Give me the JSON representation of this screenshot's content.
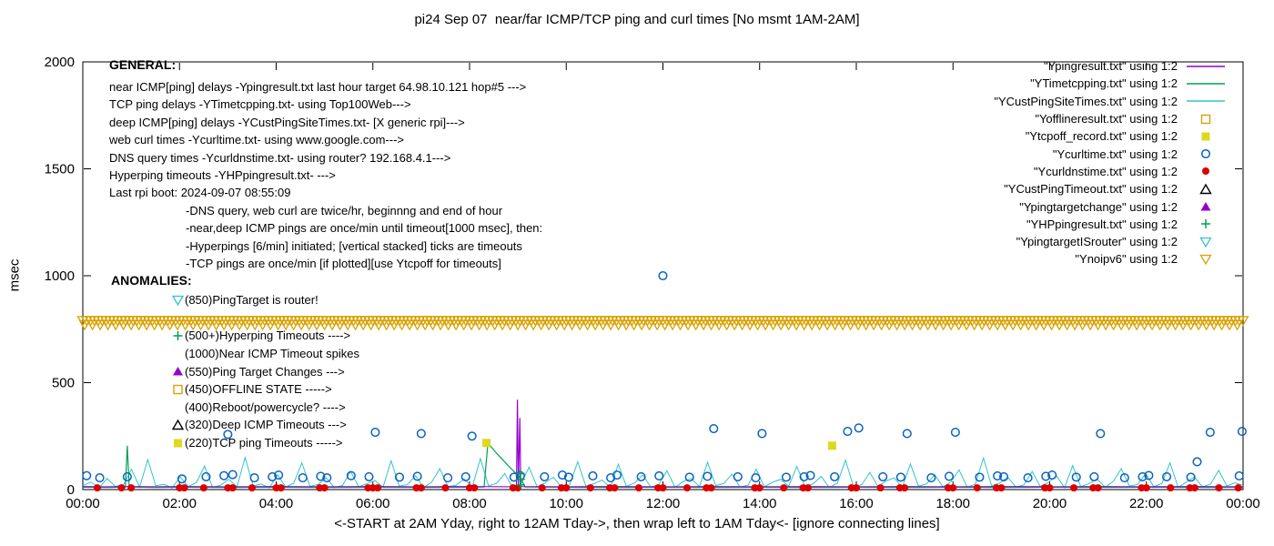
{
  "chart_data": {
    "type": "line",
    "title": "pi24 Sep 07  near/far ICMP/TCP ping and curl times [No msmt 1AM-2AM]",
    "xlabel": "<-START at 2AM Yday, right to 12AM Tday->, then wrap left to 1AM Tday<- [ignore connecting lines]",
    "ylabel": "msec",
    "xlim": [
      0,
      24
    ],
    "ylim": [
      0,
      2000
    ],
    "grid": false,
    "legend_position": "top-right",
    "xticks": [
      {
        "h": 0,
        "label": "00:00"
      },
      {
        "h": 2,
        "label": "02:00"
      },
      {
        "h": 4,
        "label": "04:00"
      },
      {
        "h": 6,
        "label": "06:00"
      },
      {
        "h": 8,
        "label": "08:00"
      },
      {
        "h": 10,
        "label": "10:00"
      },
      {
        "h": 12,
        "label": "12:00"
      },
      {
        "h": 14,
        "label": "14:00"
      },
      {
        "h": 16,
        "label": "16:00"
      },
      {
        "h": 18,
        "label": "18:00"
      },
      {
        "h": 20,
        "label": "20:00"
      },
      {
        "h": 22,
        "label": "22:00"
      },
      {
        "h": 24,
        "label": "00:00"
      }
    ],
    "yticks": [
      {
        "ms": 0,
        "label": "0"
      },
      {
        "ms": 500,
        "label": "500"
      },
      {
        "ms": 1000,
        "label": "1000"
      },
      {
        "ms": 1500,
        "label": "1500"
      },
      {
        "ms": 2000,
        "label": "2000"
      }
    ],
    "legend": [
      {
        "label": "\"Ypingresult.txt\" using 1:2",
        "marker": "line",
        "color": "#9400d3"
      },
      {
        "label": "\"YTimetcpping.txt\" using 1:2",
        "marker": "line",
        "color": "#00a050"
      },
      {
        "label": "\"YCustPingSiteTimes.txt\" using 1:2",
        "marker": "line",
        "color": "#2fc6c6"
      },
      {
        "label": "\"Yofflineresult.txt\" using 1:2",
        "marker": "square-open",
        "color": "#d9a200"
      },
      {
        "label": "\"Ytcpoff_record.txt\" using 1:2",
        "marker": "square-filled",
        "color": "#ddd820"
      },
      {
        "label": "\"Ycurltime.txt\" using 1:2",
        "marker": "circle-open",
        "color": "#0b62c1"
      },
      {
        "label": "\"Ycurldnstime.txt\" using 1:2",
        "marker": "circle-filled",
        "color": "#dd0000"
      },
      {
        "label": "\"YCustPingTimeout.txt\" using 1:2",
        "marker": "tri-up-open",
        "color": "#000000"
      },
      {
        "label": "\"Ypingtargetchange\" using 1:2",
        "marker": "tri-up-filled",
        "color": "#9400d3"
      },
      {
        "label": "\"YHPpingresult.txt\" using 1:2",
        "marker": "plus",
        "color": "#00a050"
      },
      {
        "label": "\"YpingtargetISrouter\" using 1:2",
        "marker": "tri-down-open",
        "color": "#2fc6c6"
      },
      {
        "label": "\"Ynoipv6\" using 1:2",
        "marker": "tri-down-open",
        "color": "#d9a200"
      }
    ],
    "series": [
      {
        "name": "YCustPingSiteTimes.txt",
        "type": "noise-line",
        "color": "#2fc6c6",
        "x_start": 0,
        "x_end": 24,
        "values": [
          18,
          35,
          8,
          52,
          15,
          22,
          95,
          11,
          140,
          18,
          25,
          7,
          60,
          14,
          33,
          110,
          10,
          21,
          48,
          13,
          150,
          17,
          26,
          8,
          70,
          12,
          30,
          125,
          15,
          24,
          55,
          9,
          19,
          85,
          13,
          27,
          42,
          11,
          135,
          16,
          23,
          65,
          10,
          35,
          98,
          14,
          20,
          50,
          12,
          145,
          18,
          29,
          75,
          8,
          25,
          105,
          13,
          32,
          58,
          11,
          22,
          130,
          16,
          27,
          45,
          9,
          118,
          15,
          31,
          68,
          12,
          24,
          88,
          10,
          38,
          52,
          14,
          128,
          19,
          28,
          72,
          11,
          21,
          95,
          13,
          34,
          48,
          15,
          108,
          17,
          26,
          62,
          9,
          30,
          138,
          12,
          23,
          80,
          14,
          40,
          55,
          10,
          120,
          16,
          27,
          70,
          13,
          36,
          92,
          11,
          25,
          148,
          18,
          31,
          58,
          12,
          22,
          85,
          15,
          33,
          65,
          9,
          112,
          14,
          28,
          50,
          11,
          38,
          98,
          16,
          24,
          75,
          13,
          29,
          125,
          10,
          35,
          60,
          12,
          26,
          90,
          17,
          32,
          20
        ]
      },
      {
        "name": "YTimetcpping.txt",
        "type": "line",
        "color": "#00a050",
        "points": [
          [
            0,
            11
          ],
          [
            0.5,
            10
          ],
          [
            0.88,
            11
          ],
          [
            0.92,
            205
          ],
          [
            0.96,
            12
          ],
          [
            1.5,
            10
          ],
          [
            2,
            11
          ],
          [
            3,
            10
          ],
          [
            4,
            11
          ],
          [
            5,
            10
          ],
          [
            6,
            11
          ],
          [
            7,
            10
          ],
          [
            8,
            11
          ],
          [
            8.3,
            12
          ],
          [
            8.38,
            218
          ],
          [
            8.55,
            172
          ],
          [
            8.8,
            112
          ],
          [
            9.05,
            55
          ],
          [
            9.15,
            12
          ],
          [
            10,
            11
          ],
          [
            11,
            10
          ],
          [
            12,
            11
          ],
          [
            13,
            10
          ],
          [
            14,
            11
          ],
          [
            15,
            10
          ],
          [
            16,
            11
          ],
          [
            17,
            10
          ],
          [
            18,
            11
          ],
          [
            19,
            10
          ],
          [
            20,
            11
          ],
          [
            21,
            10
          ],
          [
            22,
            11
          ],
          [
            23,
            10
          ],
          [
            24,
            11
          ]
        ]
      },
      {
        "name": "Ypingresult.txt",
        "type": "line",
        "color": "#9400d3",
        "points": [
          [
            0,
            14
          ],
          [
            0.5,
            13
          ],
          [
            1,
            14
          ],
          [
            1.5,
            13
          ],
          [
            2,
            14
          ],
          [
            3,
            13
          ],
          [
            4,
            14
          ],
          [
            5,
            13
          ],
          [
            6,
            14
          ],
          [
            7,
            13
          ],
          [
            8,
            14
          ],
          [
            8.9,
            13
          ],
          [
            8.97,
            14
          ],
          [
            8.99,
            420
          ],
          [
            9.01,
            18
          ],
          [
            9.04,
            335
          ],
          [
            9.06,
            14
          ],
          [
            10,
            13
          ],
          [
            11,
            14
          ],
          [
            12,
            13
          ],
          [
            13,
            14
          ],
          [
            14,
            13
          ],
          [
            15,
            14
          ],
          [
            16,
            13
          ],
          [
            17,
            14
          ],
          [
            18,
            13
          ],
          [
            19,
            14
          ],
          [
            20,
            13
          ],
          [
            21,
            14
          ],
          [
            22,
            13
          ],
          [
            23,
            14
          ],
          [
            24,
            13
          ]
        ]
      },
      {
        "name": "Ytcpoff_record.txt",
        "type": "points",
        "marker": "square-filled",
        "color": "#ddd820",
        "points": [
          [
            8.35,
            218
          ],
          [
            15.5,
            205
          ]
        ]
      },
      {
        "name": "Yofflineresult.txt",
        "type": "points",
        "marker": "square-open",
        "color": "#d9a200",
        "points": []
      },
      {
        "name": "YCustPingTimeout.txt",
        "type": "points",
        "marker": "tri-up-open",
        "color": "#000000",
        "points": []
      },
      {
        "name": "Ypingtargetchange",
        "type": "points",
        "marker": "tri-up-filled",
        "color": "#9400d3",
        "points": []
      },
      {
        "name": "YpingtargetISrouter",
        "type": "points",
        "marker": "tri-down-open",
        "color": "#2fc6c6",
        "points": []
      },
      {
        "name": "Ycurltime.txt",
        "type": "points",
        "marker": "circle-open",
        "color": "#0b62c1",
        "points": [
          [
            0.08,
            65
          ],
          [
            0.35,
            55
          ],
          [
            0.92,
            60
          ],
          [
            2.05,
            50
          ],
          [
            2.55,
            60
          ],
          [
            2.92,
            65
          ],
          [
            3.0,
            258
          ],
          [
            3.1,
            70
          ],
          [
            3.55,
            55
          ],
          [
            3.92,
            60
          ],
          [
            4.05,
            68
          ],
          [
            4.55,
            55
          ],
          [
            4.92,
            62
          ],
          [
            5.05,
            55
          ],
          [
            5.55,
            65
          ],
          [
            5.92,
            60
          ],
          [
            6.05,
            268
          ],
          [
            6.55,
            58
          ],
          [
            6.92,
            62
          ],
          [
            7.0,
            262
          ],
          [
            7.55,
            55
          ],
          [
            7.92,
            60
          ],
          [
            8.05,
            250
          ],
          [
            8.92,
            58
          ],
          [
            9.05,
            65
          ],
          [
            9.55,
            60
          ],
          [
            9.92,
            68
          ],
          [
            10.05,
            58
          ],
          [
            10.55,
            64
          ],
          [
            10.92,
            55
          ],
          [
            11.05,
            68
          ],
          [
            11.55,
            60
          ],
          [
            11.92,
            64
          ],
          [
            12.0,
            1000
          ],
          [
            12.55,
            58
          ],
          [
            12.92,
            62
          ],
          [
            13.05,
            285
          ],
          [
            13.55,
            60
          ],
          [
            13.92,
            55
          ],
          [
            14.05,
            262
          ],
          [
            14.55,
            58
          ],
          [
            14.92,
            60
          ],
          [
            15.05,
            66
          ],
          [
            15.55,
            60
          ],
          [
            15.82,
            272
          ],
          [
            16.05,
            288
          ],
          [
            16.55,
            60
          ],
          [
            16.92,
            58
          ],
          [
            17.05,
            262
          ],
          [
            17.55,
            55
          ],
          [
            17.92,
            62
          ],
          [
            18.05,
            268
          ],
          [
            18.55,
            58
          ],
          [
            18.92,
            64
          ],
          [
            19.05,
            60
          ],
          [
            19.55,
            55
          ],
          [
            19.92,
            62
          ],
          [
            20.05,
            68
          ],
          [
            20.55,
            58
          ],
          [
            20.92,
            60
          ],
          [
            21.05,
            262
          ],
          [
            21.55,
            55
          ],
          [
            21.92,
            60
          ],
          [
            22.05,
            66
          ],
          [
            22.42,
            60
          ],
          [
            22.92,
            58
          ],
          [
            23.05,
            130
          ],
          [
            23.32,
            268
          ],
          [
            23.92,
            64
          ],
          [
            23.98,
            272
          ]
        ]
      },
      {
        "name": "Ycurldnstime.txt",
        "type": "points",
        "marker": "circle-filled",
        "color": "#dd0000",
        "y": 8,
        "xs": [
          0.3,
          0.8,
          1.0,
          2.0,
          2.1,
          2.5,
          3.0,
          3.1,
          3.5,
          4.0,
          4.1,
          4.9,
          5.0,
          5.9,
          6.0,
          6.1,
          6.9,
          7.0,
          7.5,
          8.0,
          8.1,
          8.9,
          9.0,
          9.5,
          9.9,
          10.0,
          10.5,
          10.9,
          11.0,
          11.5,
          11.9,
          12.0,
          12.5,
          12.9,
          13.0,
          13.9,
          14.0,
          14.5,
          14.9,
          15.0,
          15.9,
          16.0,
          16.5,
          16.9,
          17.0,
          17.9,
          18.0,
          18.5,
          18.9,
          19.0,
          19.9,
          20.0,
          20.5,
          20.9,
          21.0,
          21.9,
          22.0,
          22.5,
          22.9,
          23.0,
          23.5,
          23.9
        ]
      },
      {
        "name": "YHPpingresult.txt",
        "type": "points",
        "marker": "plus",
        "color": "#00a050",
        "points": [
          [
            9.05,
            22
          ],
          [
            9.05,
            48
          ],
          [
            9.05,
            74
          ]
        ]
      },
      {
        "name": "Ynoipv6",
        "type": "band",
        "marker": "tri-down-open",
        "color": "#d9a200",
        "y": 790,
        "y2": 770,
        "x_start": 0,
        "x_end": 24,
        "step_h": 0.08
      }
    ]
  },
  "annotations": {
    "general": {
      "heading": "GENERAL:",
      "lines": [
        "near ICMP[ping] delays -Ypingresult.txt last hour target 64.98.10.121 hop#5 --->",
        "TCP ping delays -YTimetcpping.txt- using Top100Web--->",
        "deep ICMP[ping] delays -YCustPingSiteTimes.txt- [X generic rpi]--->",
        "web curl times -Ycurltime.txt- using www.google.com--->",
        "DNS query times -Ycurldnstime.txt- using router? 192.168.4.1--->",
        "Hyperping timeouts -YHPpingresult.txt- --->",
        "Last rpi boot: 2024-09-07 08:55:09",
        "-DNS query, web curl are twice/hr, beginnng and end of hour",
        "-near,deep ICMP pings are once/min until timeout[1000 msec], then:",
        "-Hyperpings [6/min] initiated; [vertical stacked] ticks are timeouts",
        "-TCP pings are once/min [if plotted][use Ytcpoff for timeouts]"
      ]
    },
    "anomalies": {
      "heading": "ANOMALIES:",
      "lines": [
        {
          "marker": "tri-down-open",
          "color": "#2fc6c6",
          "text": "(850)PingTarget is router!"
        },
        {
          "marker": "none",
          "color": "",
          "text": ""
        },
        {
          "marker": "plus",
          "color": "#00a050",
          "text": "(500+)Hyperping Timeouts ---->"
        },
        {
          "marker": "none",
          "color": "",
          "text": "(1000)Near ICMP Timeout spikes"
        },
        {
          "marker": "tri-up-filled",
          "color": "#9400d3",
          "text": "(550)Ping Target Changes --->"
        },
        {
          "marker": "square-open",
          "color": "#d9a200",
          "text": "(450)OFFLINE STATE ----->"
        },
        {
          "marker": "none",
          "color": "",
          "text": "(400)Reboot/powercycle? ---->"
        },
        {
          "marker": "tri-up-open",
          "color": "#000000",
          "text": "(320)Deep ICMP Timeouts --->"
        },
        {
          "marker": "square-filled",
          "color": "#ddd820",
          "text": "(220)TCP ping Timeouts ----->"
        }
      ]
    }
  }
}
